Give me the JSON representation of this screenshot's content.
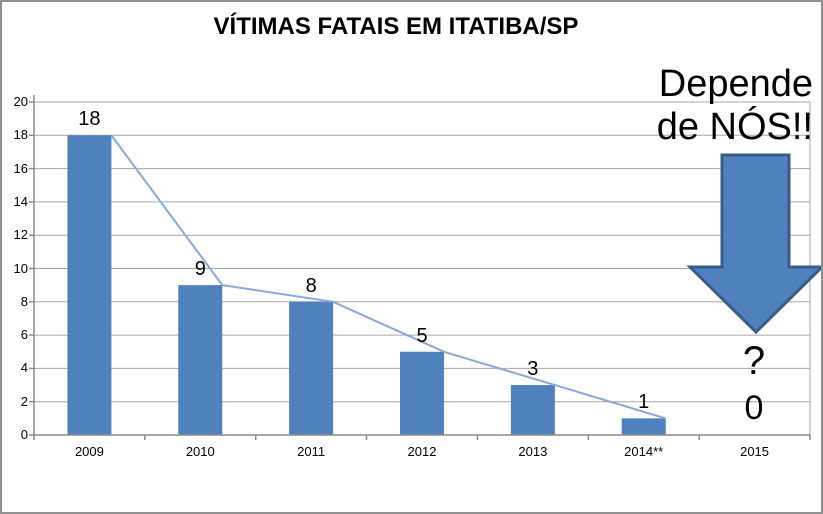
{
  "chart_data": {
    "type": "bar",
    "title": "VÍTIMAS FATAIS EM ITATIBA/SP",
    "categories": [
      "2009",
      "2010",
      "2011",
      "2012",
      "2013",
      "2014**",
      "2015"
    ],
    "series": [
      {
        "type": "bar",
        "values": [
          18,
          9,
          8,
          5,
          3,
          1,
          null
        ]
      },
      {
        "type": "line",
        "values": [
          18,
          9,
          8,
          5,
          3,
          1,
          null
        ]
      }
    ],
    "data_labels": [
      "18",
      "9",
      "8",
      "5",
      "3",
      "1"
    ],
    "ylim": [
      0,
      20
    ],
    "yticks": [
      0,
      2,
      4,
      6,
      8,
      10,
      12,
      14,
      16,
      18,
      20
    ],
    "grid": true,
    "legend_position": "none"
  },
  "annotation": {
    "line1": "Depende",
    "line2": "de NÓS!!",
    "future_question": "?",
    "future_zero": "0"
  },
  "arrow": {
    "icon": "down-arrow",
    "fill": "#4F81BD",
    "border": "#385D8A"
  },
  "colors": {
    "bar_fill": "#4F81BD",
    "trend_line": "#85A9DC",
    "gridline": "#A6A6A6",
    "axis": "#8A8A8A",
    "chart_border": "#8F8F8F",
    "background": "#FFFFFF",
    "text": "#000000"
  }
}
